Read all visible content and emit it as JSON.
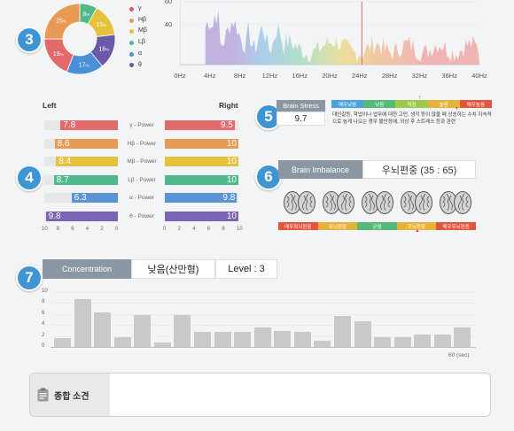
{
  "badges": {
    "b3": "3",
    "b4": "4",
    "b5": "5",
    "b6": "6",
    "b7": "7"
  },
  "donut": {
    "slices": [
      {
        "label": "8",
        "unit": "%",
        "value": 8,
        "color": "#4fb98a"
      },
      {
        "label": "15",
        "unit": "%",
        "value": 15,
        "color": "#e6c23c"
      },
      {
        "label": "16",
        "unit": "%",
        "value": 16,
        "color": "#6b58a8"
      },
      {
        "label": "17",
        "unit": "%",
        "value": 17,
        "color": "#4a90d9"
      },
      {
        "label": "19",
        "unit": "%",
        "value": 19,
        "color": "#e36a6a"
      },
      {
        "label": "25",
        "unit": "%",
        "value": 25,
        "color": "#e89a55"
      }
    ],
    "legend": [
      {
        "name": "γ",
        "color": "#e05a5a"
      },
      {
        "name": "Hβ",
        "color": "#e89a55"
      },
      {
        "name": "Mβ",
        "color": "#e6c23c"
      },
      {
        "name": "Lβ",
        "color": "#4fb98a"
      },
      {
        "name": "α",
        "color": "#4a90d9"
      },
      {
        "name": "θ",
        "color": "#6b58a8"
      }
    ]
  },
  "spectrum": {
    "y_max_label": "60",
    "y_mid_label": "40",
    "x_labels": [
      "0Hz",
      "4Hz",
      "8Hz",
      "12Hz",
      "16Hz",
      "20Hz",
      "24Hz",
      "28Hz",
      "32Hz",
      "36Hz",
      "40Hz"
    ],
    "marker_hz": 24.3
  },
  "power": {
    "left_label": "Left",
    "right_label": "Right",
    "rows": [
      {
        "name": "γ - Power",
        "left": 7.8,
        "left_text": "7.8",
        "right": 9.5,
        "right_text": "9.5",
        "color": "#e36a6a"
      },
      {
        "name": "Hβ - Power",
        "left": 8.6,
        "left_text": "8.6",
        "right": 10,
        "right_text": "10",
        "color": "#e89a55"
      },
      {
        "name": "Mβ - Power",
        "left": 8.4,
        "left_text": "8.4",
        "right": 10,
        "right_text": "10",
        "color": "#e6c23c"
      },
      {
        "name": "Lβ - Power",
        "left": 8.7,
        "left_text": "8.7",
        "right": 10,
        "right_text": "10",
        "color": "#4fb98a"
      },
      {
        "name": "α - Power",
        "left": 6.3,
        "left_text": "6.3",
        "right": 9.8,
        "right_text": "9.8",
        "color": "#5b93d3"
      },
      {
        "name": "θ - Power",
        "left": 9.8,
        "left_text": "9.8",
        "right": 10,
        "right_text": "10",
        "color": "#7c63b3"
      }
    ],
    "left_axis": [
      "10",
      "8",
      "6",
      "4",
      "2",
      "0"
    ],
    "right_axis": [
      "0",
      "2",
      "4",
      "6",
      "8",
      "10"
    ]
  },
  "brain_stress": {
    "title": "Brain Stress",
    "value": "9.7",
    "scale": [
      "매우낮음",
      "낮음",
      "적정",
      "높음",
      "매우높음"
    ],
    "scale_colors": [
      "#4aa3dc",
      "#56b978",
      "#9ccb4b",
      "#e7b23b",
      "#e2553f"
    ],
    "marker": "▼",
    "description": "대인갈등, 학업이나 업무에 대한 고민, 생각 등이 많을 때 상승하는 수치 지속적으로 높게 나오는 경우 불안장애, 외상 후 스트레스 등과 관련"
  },
  "brain_imbalance": {
    "title": "Brain Imbalance",
    "value": "우뇌편중 (35 : 65)",
    "scale": [
      "매우좌뇌편중",
      "좌뇌편중",
      "균형",
      "우뇌편중",
      "매우우뇌편중"
    ],
    "scale_colors": [
      "#e2553f",
      "#e7b23b",
      "#56b978",
      "#e7b23b",
      "#e2553f"
    ],
    "marker": "▲"
  },
  "concentration": {
    "title": "Concentration",
    "status": "낮음(산만형)",
    "level": "Level : 3",
    "y_labels": [
      "10",
      "8",
      "6",
      "4",
      "2",
      "0"
    ],
    "values": [
      1.6,
      8.7,
      6.3,
      1.7,
      5.8,
      0.8,
      5.8,
      2.8,
      2.8,
      2.8,
      3.5,
      2.9,
      2.8,
      1.1,
      5.7,
      4.6,
      1.8,
      1.8,
      2.2,
      2.3,
      3.6
    ],
    "x_end_label": "60 (sec)"
  },
  "summary": {
    "title": "종합 소견"
  }
}
